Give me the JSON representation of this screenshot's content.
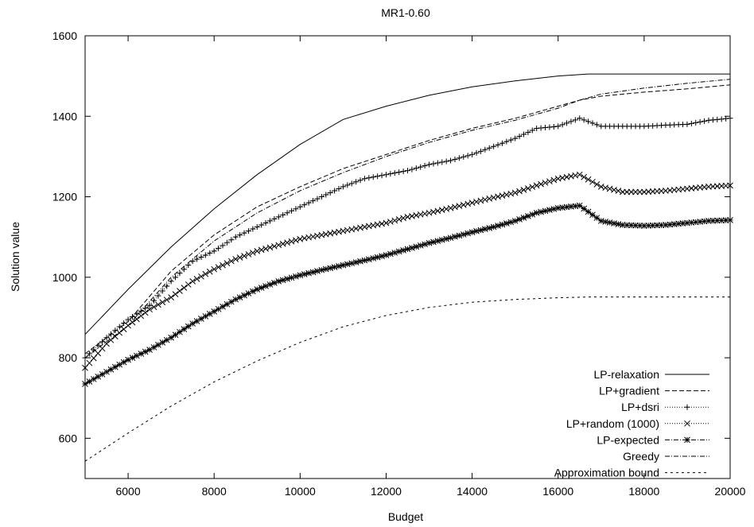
{
  "chart_data": {
    "type": "line",
    "title": "MR1-0.60",
    "xlabel": "Budget",
    "ylabel": "Solution value",
    "xlim": [
      5000,
      20000
    ],
    "ylim": [
      500,
      1600
    ],
    "x_ticks": [
      6000,
      8000,
      10000,
      12000,
      14000,
      16000,
      18000,
      20000
    ],
    "y_ticks": [
      600,
      800,
      1000,
      1200,
      1400,
      1600
    ],
    "grid": false,
    "legend_position": "bottom-right",
    "series": [
      {
        "name": "LP-relaxation",
        "style": "solid",
        "marker": "none",
        "x": [
          5000,
          6000,
          7000,
          8000,
          9000,
          10000,
          11000,
          12000,
          13000,
          14000,
          15000,
          16000,
          16700,
          17000,
          18000,
          19000,
          20000
        ],
        "y": [
          858,
          970,
          1075,
          1170,
          1255,
          1330,
          1392,
          1425,
          1452,
          1473,
          1488,
          1500,
          1505,
          1505,
          1505,
          1505,
          1505
        ]
      },
      {
        "name": "LP+gradient",
        "style": "dashed",
        "marker": "none",
        "x": [
          5000,
          6000,
          7000,
          8000,
          9000,
          10000,
          11000,
          12000,
          13000,
          14000,
          15000,
          16000,
          16500,
          17000,
          18000,
          19000,
          20000
        ],
        "y": [
          810,
          890,
          1015,
          1105,
          1175,
          1225,
          1270,
          1305,
          1340,
          1370,
          1395,
          1425,
          1440,
          1450,
          1460,
          1468,
          1478
        ]
      },
      {
        "name": "LP+dsri",
        "style": "dotted",
        "marker": "plus",
        "x": [
          5000,
          5500,
          6000,
          6500,
          7000,
          7500,
          8000,
          8500,
          9000,
          9500,
          10000,
          10500,
          11000,
          11500,
          12000,
          12500,
          13000,
          13500,
          14000,
          14500,
          15000,
          15500,
          16000,
          16500,
          17000,
          17500,
          18000,
          18500,
          19000,
          19500,
          20000
        ],
        "y": [
          800,
          850,
          895,
          930,
          990,
          1040,
          1065,
          1100,
          1125,
          1150,
          1175,
          1200,
          1225,
          1245,
          1255,
          1265,
          1280,
          1290,
          1305,
          1325,
          1345,
          1370,
          1375,
          1395,
          1375,
          1375,
          1375,
          1378,
          1380,
          1390,
          1395
        ]
      },
      {
        "name": "LP+random (1000)",
        "style": "dotted",
        "marker": "x",
        "x": [
          5000,
          5500,
          6000,
          6500,
          7000,
          7500,
          8000,
          8500,
          9000,
          9500,
          10000,
          10500,
          11000,
          11500,
          12000,
          12500,
          13000,
          13500,
          14000,
          14500,
          15000,
          15500,
          16000,
          16500,
          17000,
          17500,
          18000,
          18500,
          19000,
          19500,
          20000
        ],
        "y": [
          775,
          835,
          880,
          920,
          950,
          990,
          1020,
          1045,
          1065,
          1080,
          1095,
          1105,
          1115,
          1125,
          1135,
          1150,
          1160,
          1172,
          1185,
          1198,
          1210,
          1228,
          1245,
          1255,
          1225,
          1212,
          1212,
          1215,
          1220,
          1225,
          1228
        ]
      },
      {
        "name": "LP-expected",
        "style": "dashdot",
        "marker": "star",
        "x": [
          5000,
          5500,
          6000,
          6500,
          7000,
          7500,
          8000,
          8500,
          9000,
          9500,
          10000,
          10500,
          11000,
          11500,
          12000,
          12500,
          13000,
          13500,
          14000,
          14500,
          15000,
          15500,
          16000,
          16500,
          17000,
          17500,
          18000,
          18500,
          19000,
          19500,
          20000
        ],
        "y": [
          735,
          765,
          795,
          820,
          850,
          885,
          915,
          945,
          970,
          990,
          1005,
          1018,
          1030,
          1042,
          1055,
          1070,
          1085,
          1098,
          1112,
          1125,
          1140,
          1160,
          1172,
          1178,
          1140,
          1130,
          1128,
          1130,
          1135,
          1140,
          1142
        ]
      },
      {
        "name": "Greedy",
        "style": "dashdot",
        "marker": "none",
        "x": [
          5000,
          6000,
          7000,
          8000,
          9000,
          10000,
          11000,
          12000,
          13000,
          14000,
          15000,
          16000,
          16500,
          17000,
          18000,
          19000,
          20000
        ],
        "y": [
          800,
          880,
          1000,
          1090,
          1160,
          1215,
          1260,
          1300,
          1335,
          1365,
          1390,
          1420,
          1440,
          1455,
          1470,
          1482,
          1492
        ]
      },
      {
        "name": "Approximation bound",
        "style": "dashed-fine",
        "marker": "none",
        "x": [
          5000,
          6000,
          7000,
          8000,
          9000,
          10000,
          11000,
          12000,
          13000,
          14000,
          15000,
          16000,
          16700,
          17000,
          18000,
          19000,
          20000
        ],
        "y": [
          543,
          613,
          680,
          740,
          792,
          838,
          877,
          905,
          925,
          938,
          945,
          949,
          951,
          951,
          951,
          951,
          951
        ]
      }
    ]
  }
}
